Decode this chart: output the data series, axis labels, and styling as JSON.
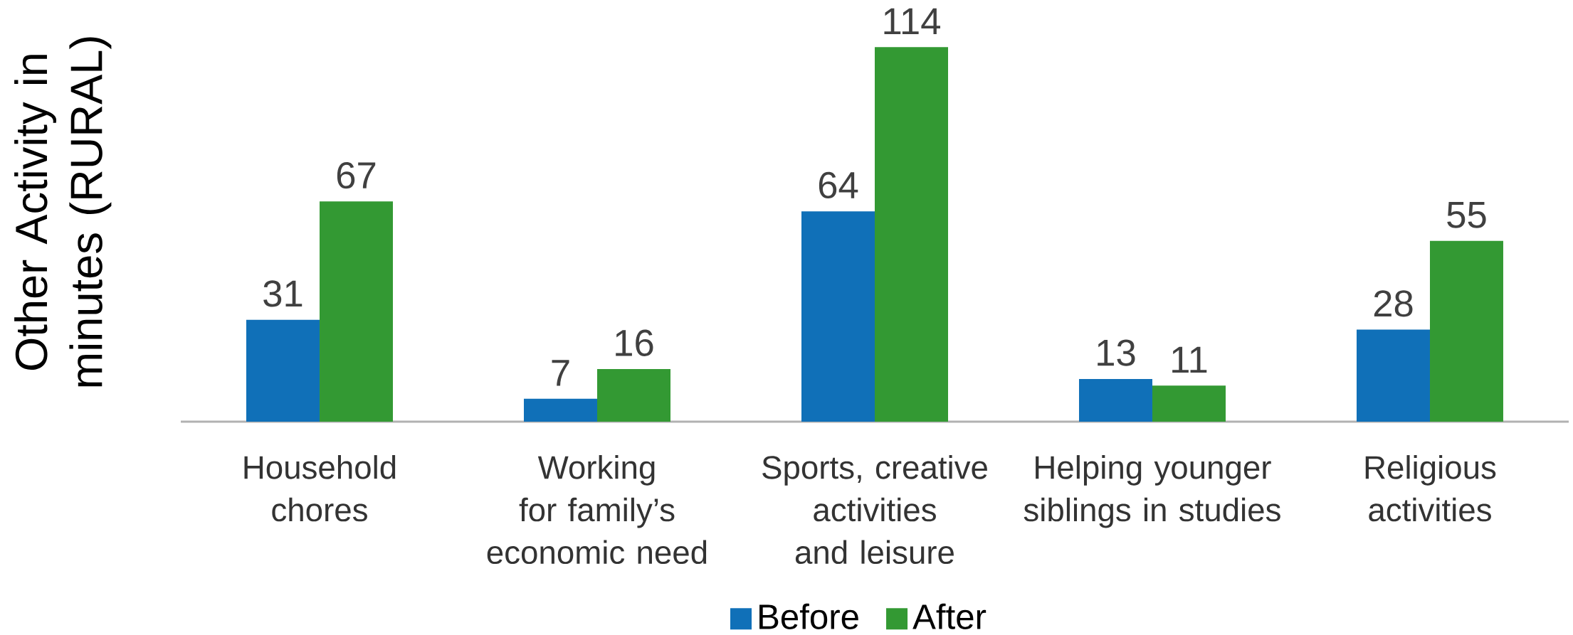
{
  "chart_data": {
    "type": "bar",
    "ylabel": "Other Activity in minutes (RURAL)",
    "categories": [
      "Household chores",
      "Working for family’s economic need",
      "Sports, creative activities and leisure",
      "Helping younger siblings in studies",
      "Religious activities"
    ],
    "series": [
      {
        "name": "Before",
        "color": "#1070b8",
        "values": [
          31,
          7,
          64,
          13,
          28
        ]
      },
      {
        "name": "After",
        "color": "#339933",
        "values": [
          67,
          16,
          114,
          11,
          55
        ]
      }
    ],
    "data_labels": true,
    "legend": "bottom"
  }
}
